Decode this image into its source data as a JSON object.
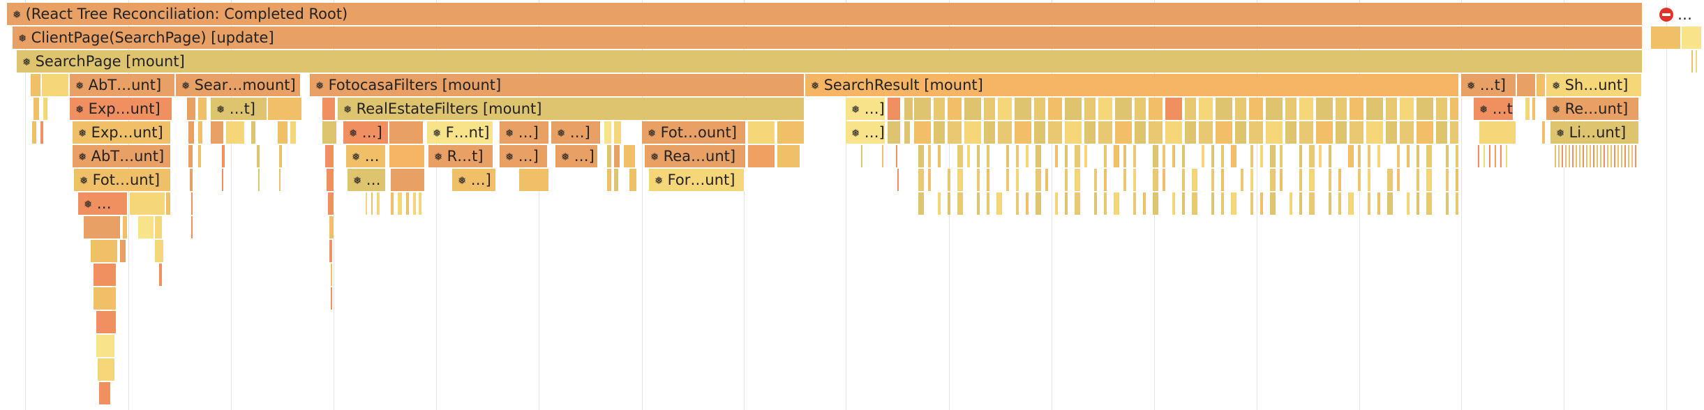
{
  "toolbar_icon": "react-component-icon",
  "abort_marker": {
    "icon": "stop-icon",
    "label": "…"
  },
  "colors": {
    "orange": "#E8A064",
    "tan": "#DEC46E",
    "gold": "#F0C068",
    "yellow": "#F5D77A",
    "red_orange": "#F09060",
    "light_yellow": "#F8E28A"
  },
  "flame": {
    "root": "(React Tree Reconciliation: Completed Root)",
    "client_page": "ClientPage(SearchPage) [update]",
    "search_page": "SearchPage [mount]",
    "row3": {
      "abt": "AbT…unt]",
      "sear": "Sear…mount]",
      "fotocasa_filters": "FotocasaFilters [mount]",
      "search_result": "SearchResult [mount]",
      "t": "…t]",
      "sh": "Sh…unt]"
    },
    "row4": {
      "exp": "Exp…unt]",
      "t": "…t]",
      "real_estate_filters": "RealEstateFilters [mount]",
      "sr1": "…]",
      "t2": "…t]",
      "re": "Re…unt]"
    },
    "row5": {
      "exp": "Exp…unt]",
      "a": "…]",
      "f": "F…nt]",
      "b": "…]",
      "c": "…]",
      "fot": "Fot…ount]",
      "sr2": "…]",
      "li": "Li…unt]"
    },
    "row6": {
      "abt": "AbT…unt]",
      "a": "…",
      "r": "R…t]",
      "b": "…]",
      "c": "…]",
      "rea": "Rea…unt]"
    },
    "row7": {
      "fot": "Fot…unt]",
      "a": "…",
      "b": "…]",
      "for": "For…unt]"
    },
    "row8": {
      "a": "…"
    }
  }
}
